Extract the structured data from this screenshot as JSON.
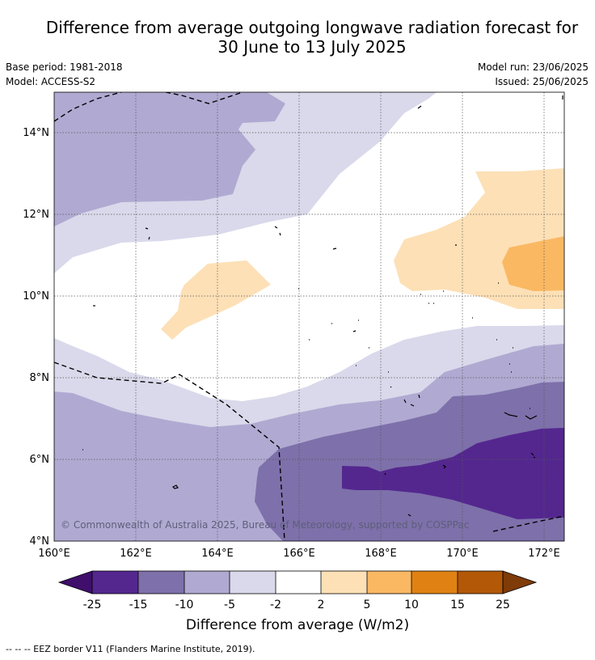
{
  "title": {
    "line1": "Difference from average outgoing longwave radiation forecast for",
    "line2": "30 June to 13 July 2025"
  },
  "meta": {
    "base_period": "Base period: 1981-2018",
    "model": "Model: ACCESS-S2",
    "model_run": "Model run: 23/06/2025",
    "issued": "Issued: 25/06/2025"
  },
  "map": {
    "extent": {
      "lon": [
        160,
        172.5
      ],
      "lat": [
        4,
        15
      ]
    },
    "x_ticks": [
      "160°E",
      "162°E",
      "164°E",
      "166°E",
      "168°E",
      "170°E",
      "172°E"
    ],
    "y_ticks": [
      "4°N",
      "6°N",
      "8°N",
      "10°N",
      "12°N",
      "14°N"
    ],
    "credit": "© Commonwealth of Australia 2025, Bureau of Meteorology, supported by COSPPac"
  },
  "colorbar": {
    "bounds": [
      "-25",
      "-15",
      "-10",
      "-5",
      "-2",
      "2",
      "5",
      "10",
      "15",
      "25"
    ],
    "colors": [
      "#3f0f6b",
      "#54278f",
      "#7e70aa",
      "#b0aad2",
      "#d9d9eb",
      "#ffffff",
      "#fde0b6",
      "#fab863",
      "#e08213",
      "#b35807",
      "#7f3b08"
    ],
    "label": "Difference from average (W/m2)"
  },
  "footnote": "--  --  -- EEZ border V11 (Flanders Marine Institute, 2019)."
}
